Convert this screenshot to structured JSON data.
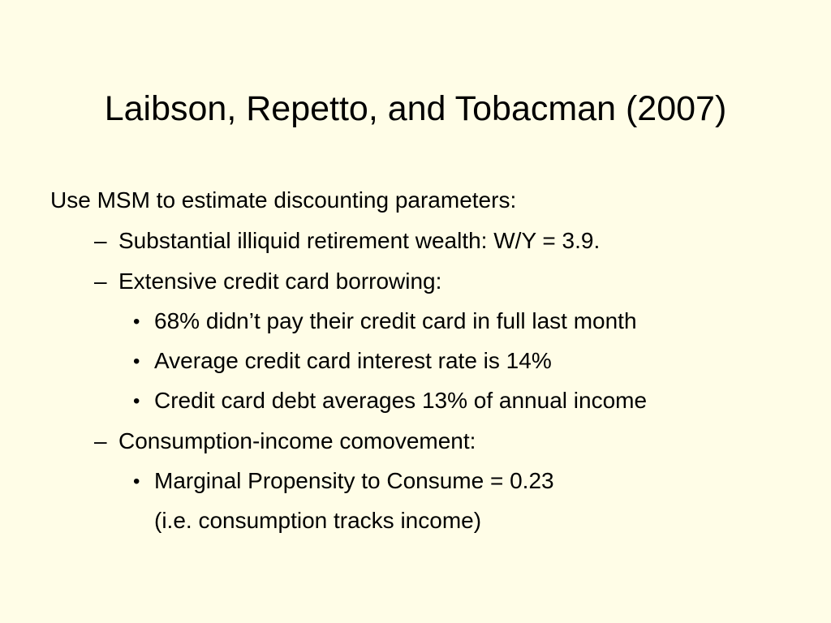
{
  "slide": {
    "title": "Laibson, Repetto, and Tobacman (2007)",
    "intro": "Use MSM to estimate discounting parameters:",
    "dash": "–",
    "bullet": "•",
    "items": [
      {
        "text": "Substantial illiquid retirement wealth: W/Y = 3.9."
      },
      {
        "text": "Extensive credit card borrowing:",
        "subitems": [
          "68% didn’t pay their credit card in full last month",
          "Average credit card interest rate is 14%",
          "Credit card debt averages 13% of annual income"
        ]
      },
      {
        "text": "Consumption-income comovement:",
        "subitems": [
          "Marginal Propensity to Consume = 0.23"
        ],
        "continuation": "(i.e. consumption tracks income)"
      }
    ]
  }
}
